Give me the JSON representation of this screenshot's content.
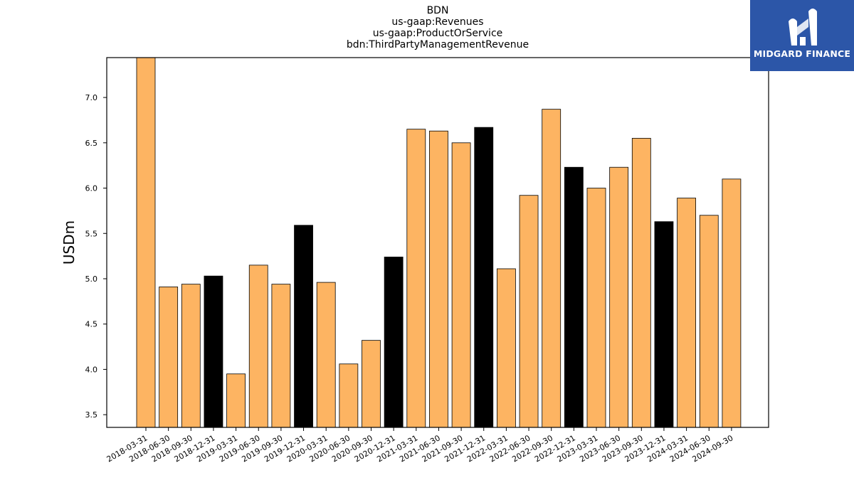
{
  "chart_data": {
    "type": "bar",
    "title_lines": [
      "BDN",
      "us-gaap:Revenues",
      "us-gaap:ProductOrService",
      "bdn:ThirdPartyManagementRevenue"
    ],
    "xlabel": "",
    "ylabel": "USDm",
    "ylim": [
      3.36,
      7.44
    ],
    "yticks": [
      3.5,
      4.0,
      4.5,
      5.0,
      5.5,
      6.0,
      6.5,
      7.0
    ],
    "categories": [
      "2018-03-31",
      "2018-06-30",
      "2018-09-30",
      "2018-12-31",
      "2019-03-31",
      "2019-06-30",
      "2019-09-30",
      "2019-12-31",
      "2020-03-31",
      "2020-06-30",
      "2020-09-30",
      "2020-12-31",
      "2021-03-31",
      "2021-06-30",
      "2021-09-30",
      "2021-12-31",
      "2022-03-31",
      "2022-06-30",
      "2022-09-30",
      "2022-12-31",
      "2023-03-31",
      "2023-06-30",
      "2023-09-30",
      "2023-12-31",
      "2024-03-31",
      "2024-06-30",
      "2024-09-30"
    ],
    "values": [
      7.44,
      4.91,
      4.94,
      5.03,
      3.95,
      5.15,
      4.94,
      5.59,
      4.96,
      4.06,
      4.32,
      5.24,
      6.65,
      6.63,
      6.5,
      6.67,
      5.11,
      5.92,
      6.87,
      6.23,
      6.0,
      6.23,
      6.55,
      5.63,
      5.89,
      5.7,
      6.1
    ],
    "colors": {
      "quarter": "#fdb462",
      "year_end": "#000000",
      "edge": "#000000"
    },
    "grid": false,
    "legend": "none"
  },
  "logo": {
    "text": "MIDGARD FINANCE",
    "background": "#2c56a8"
  }
}
